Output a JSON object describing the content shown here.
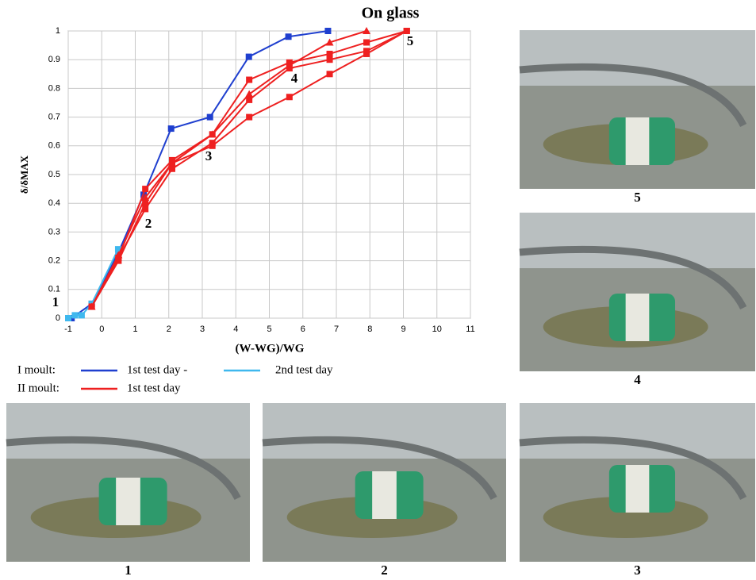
{
  "chart_data": {
    "type": "line",
    "title": "On glass",
    "x_label": "(W-WG)/WG",
    "y_label": "δ/δMAX",
    "xlim": [
      -1,
      11
    ],
    "xticks": [
      -1,
      0,
      1,
      2,
      3,
      4,
      5,
      6,
      7,
      8,
      9,
      10,
      11
    ],
    "ylim": [
      0,
      1
    ],
    "yticks": [
      0,
      0.1,
      0.2,
      0.3,
      0.4,
      0.5,
      0.6,
      0.7,
      0.8,
      0.9,
      1
    ],
    "grid": true,
    "legend_groups": [
      "I moult:",
      "II moult:"
    ],
    "annotations": [
      "1",
      "2",
      "3",
      "4",
      "5"
    ],
    "series": [
      {
        "name": "1st test day -",
        "color": "#1f3fcf",
        "marker": "square",
        "x": [
          -0.9,
          -0.3,
          0.5,
          1.25,
          2.07,
          3.23,
          4.39,
          5.57,
          6.75
        ],
        "values": [
          0,
          0.05,
          0.23,
          0.43,
          0.66,
          0.7,
          0.91,
          0.98,
          1.0
        ]
      },
      {
        "name": "2nd test day",
        "color": "#3fb8ee",
        "marker": "square",
        "x": [
          -1,
          -0.8,
          -0.6,
          -0.3,
          0.49
        ],
        "values": [
          0,
          0.01,
          0.01,
          0.05,
          0.24
        ]
      },
      {
        "name": "1st test day",
        "color": "#ee2020",
        "marker": "square",
        "x": [
          -0.3,
          0.5,
          1.3,
          2.1,
          3.3,
          4.4,
          5.6,
          6.8,
          7.9,
          9.1
        ],
        "values": [
          0.04,
          0.21,
          0.45,
          0.55,
          0.64,
          0.83,
          0.89,
          0.92,
          0.96,
          1.0
        ]
      },
      {
        "color": "#ee2020",
        "marker": "triangle",
        "x": [
          -0.3,
          0.5,
          1.3,
          2.1,
          3.3,
          4.4,
          5.6,
          6.8,
          7.9
        ],
        "values": [
          0.04,
          0.22,
          0.42,
          0.54,
          0.64,
          0.78,
          0.88,
          0.96,
          1.0
        ]
      },
      {
        "color": "#ee2020",
        "marker": "square",
        "x": [
          -0.3,
          0.5,
          1.3,
          2.1,
          3.3,
          4.4,
          5.6,
          6.8,
          7.9,
          9.1
        ],
        "values": [
          0.04,
          0.21,
          0.38,
          0.52,
          0.61,
          0.76,
          0.87,
          0.9,
          0.93,
          1.0
        ]
      },
      {
        "color": "#ee2020",
        "marker": "square",
        "x": [
          -0.3,
          0.5,
          1.3,
          2.1,
          3.3,
          4.4,
          5.6,
          6.8,
          7.9,
          9.1
        ],
        "values": [
          0.04,
          0.2,
          0.4,
          0.54,
          0.6,
          0.7,
          0.77,
          0.85,
          0.92,
          1.0
        ]
      }
    ]
  },
  "photos": [
    "5",
    "4",
    "1",
    "2",
    "3"
  ]
}
